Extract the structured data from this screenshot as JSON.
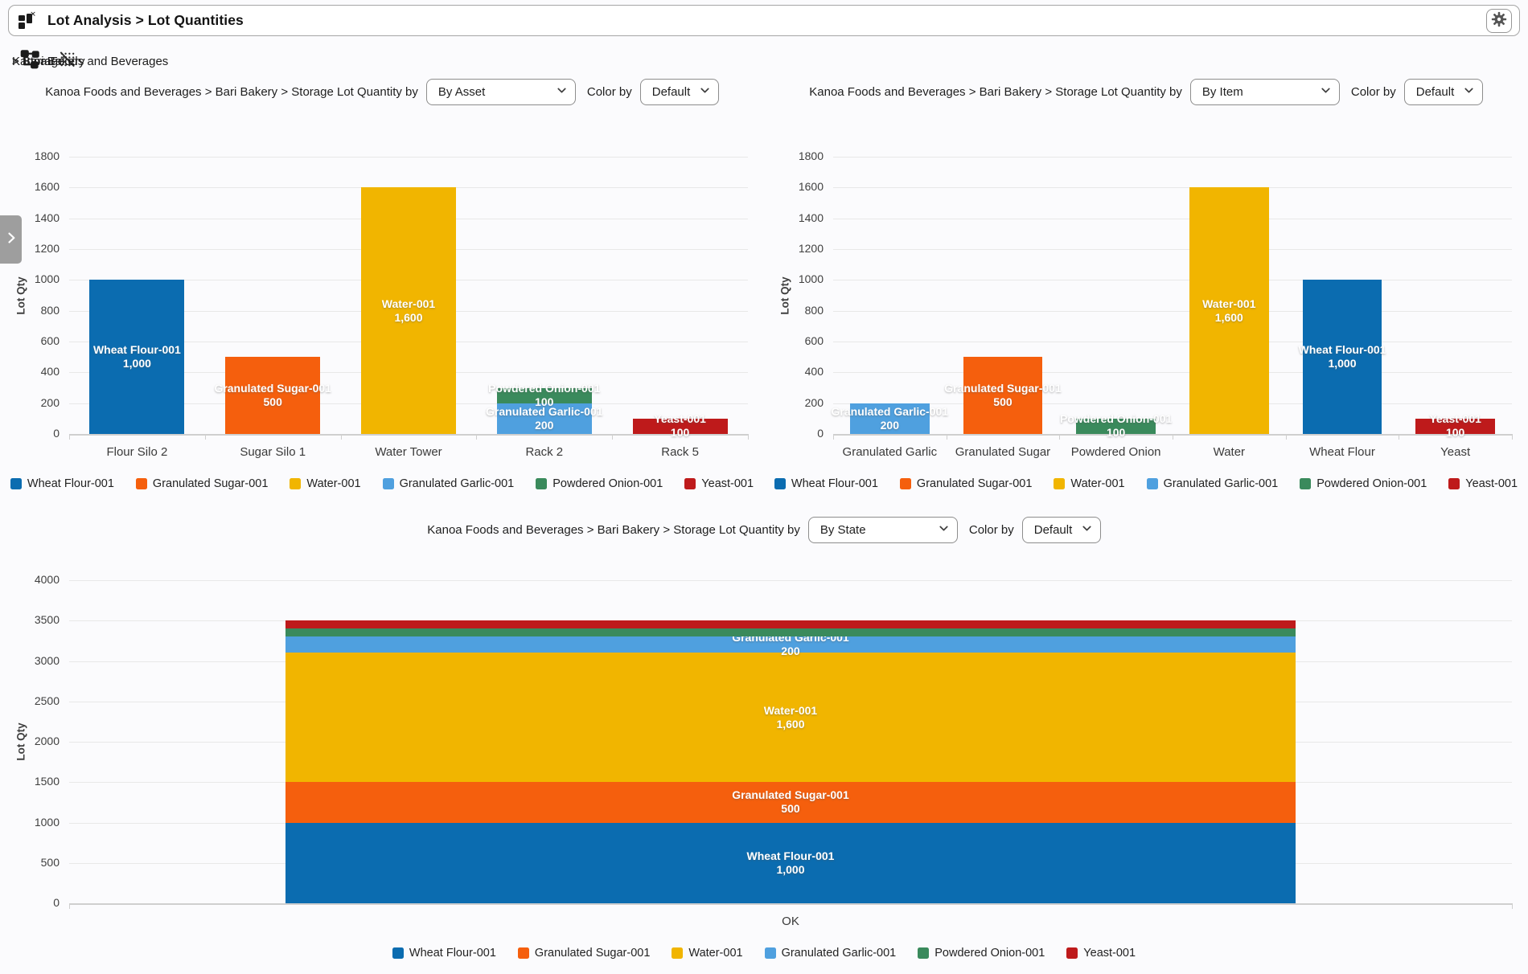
{
  "window": {
    "title": "Lot Analysis > Lot Quantities"
  },
  "icons": {
    "app": "dashboard-tiles-icon",
    "settings": "gear-icon",
    "breadcrumb_root": "hierarchy-icon",
    "breadcrumb_filter": "matrix-off-icon",
    "panel_expander": "chevron-right-icon",
    "dropdown": "chevron-down-icon"
  },
  "breadcrumb": {
    "segments": [
      {
        "label": "Kanoa Foods and Beverages"
      },
      {
        "label": "> Bari Bakery"
      },
      {
        "label": "> Storage"
      },
      {
        "label": ">"
      }
    ]
  },
  "series_colors": {
    "Wheat Flour-001": "#0B6CB0",
    "Granulated Sugar-001": "#F55F0D",
    "Water-001": "#F1B500",
    "Granulated Garlic-001": "#4FA0DF",
    "Powdered Onion-001": "#3A8A5C",
    "Yeast-001": "#BE1A1B"
  },
  "chart_data": [
    {
      "type": "bar",
      "title": "Kanoa Foods and Beverages > Bari Bakery > Storage Lot Quantity by",
      "group_by_selected": "By Asset",
      "color_by_label": "Color by",
      "color_by_selected": "Default",
      "ylabel": "Lot Qty",
      "ylim": [
        0,
        1800
      ],
      "ytick_step": 200,
      "grid": true,
      "legend_position": "bottom",
      "categories": [
        "Flour Silo 2",
        "Sugar Silo 1",
        "Water Tower",
        "Rack 2",
        "Rack 5"
      ],
      "bars": [
        [
          {
            "series": "Wheat Flour-001",
            "value": 1000,
            "value_label": "1,000"
          }
        ],
        [
          {
            "series": "Granulated Sugar-001",
            "value": 500,
            "value_label": "500"
          }
        ],
        [
          {
            "series": "Water-001",
            "value": 1600,
            "value_label": "1,600"
          }
        ],
        [
          {
            "series": "Granulated Garlic-001",
            "value": 200,
            "value_label": "200"
          },
          {
            "series": "Powdered Onion-001",
            "value": 100,
            "value_label": "100"
          }
        ],
        [
          {
            "series": "Yeast-001",
            "value": 100,
            "value_label": "100"
          }
        ]
      ],
      "legend": [
        "Wheat Flour-001",
        "Granulated Sugar-001",
        "Water-001",
        "Granulated Garlic-001",
        "Powdered Onion-001",
        "Yeast-001"
      ]
    },
    {
      "type": "bar",
      "title": "Kanoa Foods and Beverages > Bari Bakery > Storage Lot Quantity by",
      "group_by_selected": "By Item",
      "color_by_label": "Color by",
      "color_by_selected": "Default",
      "ylabel": "Lot Qty",
      "ylim": [
        0,
        1800
      ],
      "ytick_step": 200,
      "grid": true,
      "legend_position": "bottom",
      "categories": [
        "Granulated Garlic",
        "Granulated Sugar",
        "Powdered Onion",
        "Water",
        "Wheat Flour",
        "Yeast"
      ],
      "bars": [
        [
          {
            "series": "Granulated Garlic-001",
            "value": 200,
            "value_label": "200"
          }
        ],
        [
          {
            "series": "Granulated Sugar-001",
            "value": 500,
            "value_label": "500"
          }
        ],
        [
          {
            "series": "Powdered Onion-001",
            "value": 100,
            "value_label": "100"
          }
        ],
        [
          {
            "series": "Water-001",
            "value": 1600,
            "value_label": "1,600"
          }
        ],
        [
          {
            "series": "Wheat Flour-001",
            "value": 1000,
            "value_label": "1,000"
          }
        ],
        [
          {
            "series": "Yeast-001",
            "value": 100,
            "value_label": "100"
          }
        ]
      ],
      "legend": [
        "Wheat Flour-001",
        "Granulated Sugar-001",
        "Water-001",
        "Granulated Garlic-001",
        "Powdered Onion-001",
        "Yeast-001"
      ]
    },
    {
      "type": "stacked-bar",
      "title": "Kanoa Foods and Beverages > Bari Bakery > Storage Lot Quantity by",
      "group_by_selected": "By State",
      "color_by_label": "Color by",
      "color_by_selected": "Default",
      "ylabel": "Lot Qty",
      "ylim": [
        0,
        4000
      ],
      "ytick_step": 500,
      "grid": true,
      "legend_position": "bottom",
      "categories": [
        "OK"
      ],
      "bars": [
        [
          {
            "series": "Wheat Flour-001",
            "value": 1000,
            "value_label": "1,000"
          },
          {
            "series": "Granulated Sugar-001",
            "value": 500,
            "value_label": "500"
          },
          {
            "series": "Water-001",
            "value": 1600,
            "value_label": "1,600"
          },
          {
            "series": "Granulated Garlic-001",
            "value": 200,
            "value_label": "200"
          },
          {
            "series": "Powdered Onion-001",
            "value": 100,
            "value_label": "100",
            "label_visible": false
          },
          {
            "series": "Yeast-001",
            "value": 100,
            "value_label": "100",
            "label_visible": false
          }
        ]
      ],
      "legend": [
        "Wheat Flour-001",
        "Granulated Sugar-001",
        "Water-001",
        "Granulated Garlic-001",
        "Powdered Onion-001",
        "Yeast-001"
      ]
    }
  ]
}
